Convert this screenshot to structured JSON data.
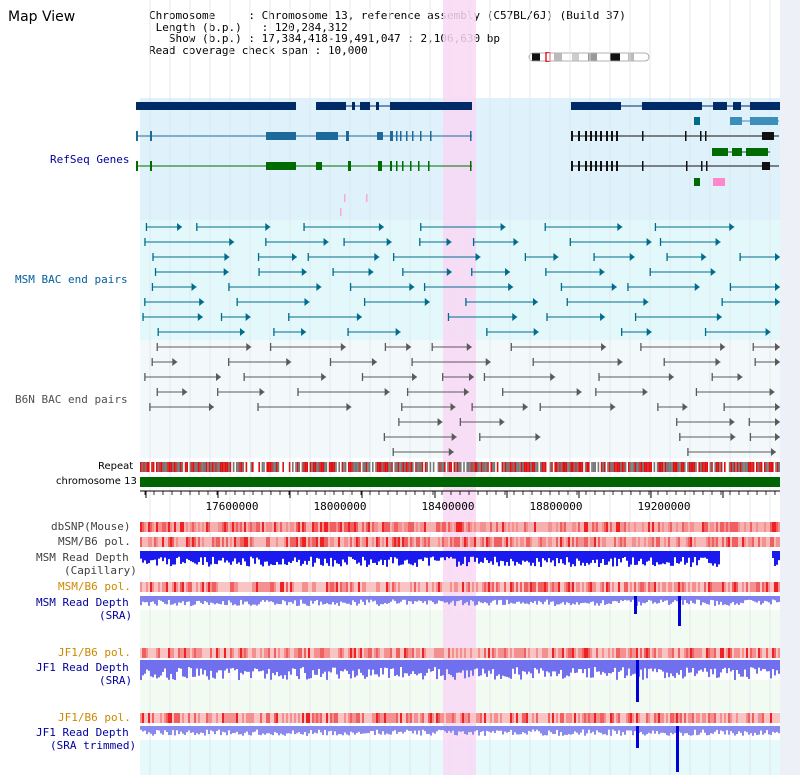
{
  "page": {
    "title": "Map View"
  },
  "info": {
    "chromosome_key": "Chromosome",
    "chromosome_value": "Chromosome 13, reference assembly (C57BL/6J) (Build 37)",
    "length_key": "Length (b.p.)",
    "length_value": "120,284,312",
    "show_key": "Show (b.p.)",
    "show_value": "17,384,418-19,491,047 : 2,106,630 bp",
    "coverage_key": "Read coverage check span",
    "coverage_value": "10,000"
  },
  "tracks": {
    "refseq": {
      "label": "RefSeq Genes",
      "color": "#00008b"
    },
    "msm_bac": {
      "label": "MSM BAC end pairs",
      "color": "#006080"
    },
    "b6n_bac": {
      "label": "B6N BAC end pairs",
      "color": "#555555"
    },
    "repeat": {
      "label": "Repeat"
    },
    "chromosome": {
      "label": "chromosome 13"
    },
    "dbsnp": {
      "label": "dbSNP(Mouse)"
    },
    "msm_b6_pol": {
      "label": "MSM/B6 pol."
    },
    "msm_depth_cap": {
      "label": "MSM Read Depth",
      "sub": "(Capillary)"
    },
    "msm_b6_pol2": {
      "label": "MSM/B6 pol."
    },
    "msm_depth_sra": {
      "label": "MSM Read Depth",
      "sub": "(SRA)"
    },
    "jf1_b6_pol": {
      "label": "JF1/B6 pol."
    },
    "jf1_depth_sra": {
      "label": "JF1 Read Depth",
      "sub": "(SRA)"
    },
    "jf1_b6_pol2": {
      "label": "JF1/B6 pol."
    },
    "jf1_depth_trim": {
      "label": "JF1 Read Depth",
      "sub": "(SRA trimmed)"
    }
  },
  "ruler": {
    "ticks": [
      "17600000",
      "18000000",
      "18400000",
      "18800000",
      "19200000"
    ]
  },
  "colors": {
    "refseq_bg": "#dff2fb",
    "bac_bg": "#e3f8fa",
    "highlight": "#f8d8f4",
    "label_blue": "#00009c",
    "label_orange": "#cc8800",
    "label_gray": "#404040",
    "chromosome_bar": "#006400",
    "depth_blue": "#0000dd",
    "depth_light": "#8080ee"
  }
}
